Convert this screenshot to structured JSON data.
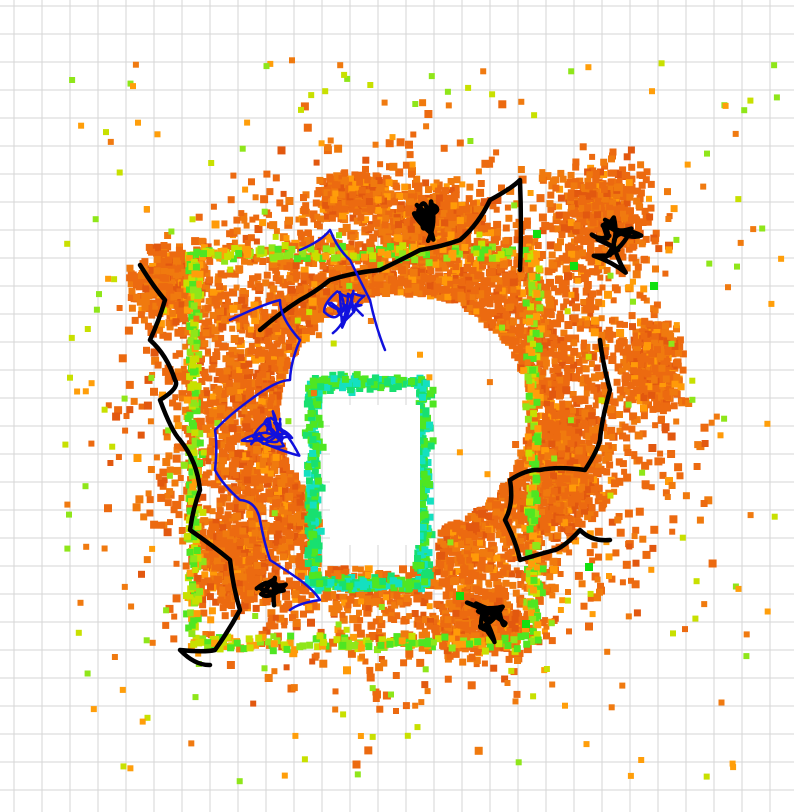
{
  "view": {
    "background": "#ffffff",
    "grid_color": "#d6d6d6"
  },
  "map": {
    "far_cell_color": "#e8640f",
    "near_cell_palette": [
      "#f07a10",
      "#ff9e0a",
      "#c8e000",
      "#8fe61a",
      "#4fe622",
      "#18e070",
      "#14e0c0"
    ],
    "open_region": "white-rectangle-center"
  },
  "trajectories": {
    "robot_a_color": "#000000",
    "robot_b_color": "#1010dd",
    "robot_a_label": "black-trajectory",
    "robot_b_label": "blue-trajectory"
  },
  "markers": {
    "pose_color": "#10e010"
  }
}
